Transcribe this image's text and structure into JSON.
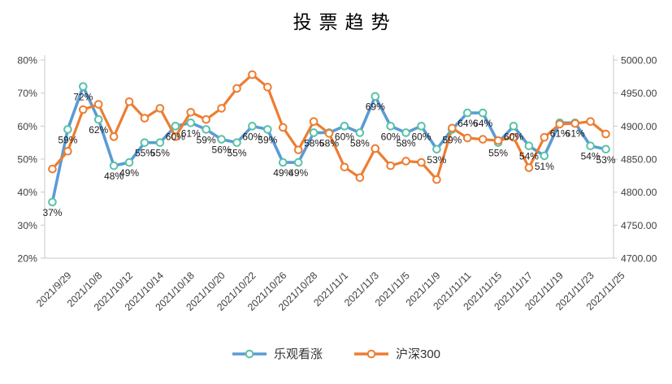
{
  "title": "投票趋势",
  "colors": {
    "optimistic_line": "#5B9BD5",
    "optimistic_marker": "#58C2A9",
    "csi300_line": "#ED7D31",
    "csi300_marker": "#ED7D31",
    "axis_line": "#C9C9C9",
    "axis_text": "#3f3f3f",
    "data_label_text": "#1a1a1a"
  },
  "legend": [
    {
      "label": "乐观看涨",
      "line_color": "#5B9BD5",
      "marker_color": "#58C2A9"
    },
    {
      "label": "沪深300",
      "line_color": "#ED7D31",
      "marker_color": "#ED7D31"
    }
  ],
  "chart_data": {
    "type": "line",
    "title": "投票趋势",
    "n_points": 37,
    "x_tick_labels": [
      "2021/9/29",
      "2021/10/8",
      "2021/10/12",
      "2021/10/14",
      "2021/10/18",
      "2021/10/20",
      "2021/10/22",
      "2021/10/26",
      "2021/10/28",
      "2021/11/1",
      "2021/11/3",
      "2021/11/5",
      "2021/11/9",
      "2021/11/11",
      "2021/11/15",
      "2021/11/17",
      "2021/11/19",
      "2021/11/23",
      "2021/11/25"
    ],
    "x_tick_every": 2,
    "left_axis": {
      "min": 20,
      "max": 80,
      "unit": "%",
      "ticks": [
        "80%",
        "70%",
        "60%",
        "50%",
        "40%",
        "30%",
        "20%"
      ]
    },
    "right_axis": {
      "min": 4700,
      "max": 5000,
      "ticks": [
        "5000.00",
        "4950.00",
        "4900.00",
        "4850.00",
        "4800.00",
        "4750.00",
        "4700.00"
      ]
    },
    "grid": false,
    "legend_position": "bottom",
    "series": [
      {
        "name": "乐观看涨",
        "axis": "left",
        "data_labels": true,
        "label_suffix": "%",
        "values": [
          37,
          59,
          72,
          62,
          48,
          49,
          55,
          55,
          60,
          61,
          59,
          56,
          55,
          60,
          59,
          49,
          49,
          58,
          58,
          60,
          58,
          69,
          60,
          58,
          60,
          53,
          59,
          64,
          64,
          55,
          60,
          54,
          51,
          61,
          61,
          54,
          53
        ]
      },
      {
        "name": "沪深300",
        "axis": "right",
        "data_labels": false,
        "values": [
          4835,
          4862,
          4925,
          4933,
          4884,
          4937,
          4912,
          4927,
          4884,
          4921,
          4910,
          4927,
          4957,
          4978,
          4959,
          4898,
          4864,
          4907,
          4889,
          4838,
          4822,
          4866,
          4840,
          4847,
          4845,
          4819,
          4897,
          4882,
          4880,
          4878,
          4883,
          4837,
          4883,
          4903,
          4904,
          4907,
          4888
        ]
      }
    ]
  }
}
